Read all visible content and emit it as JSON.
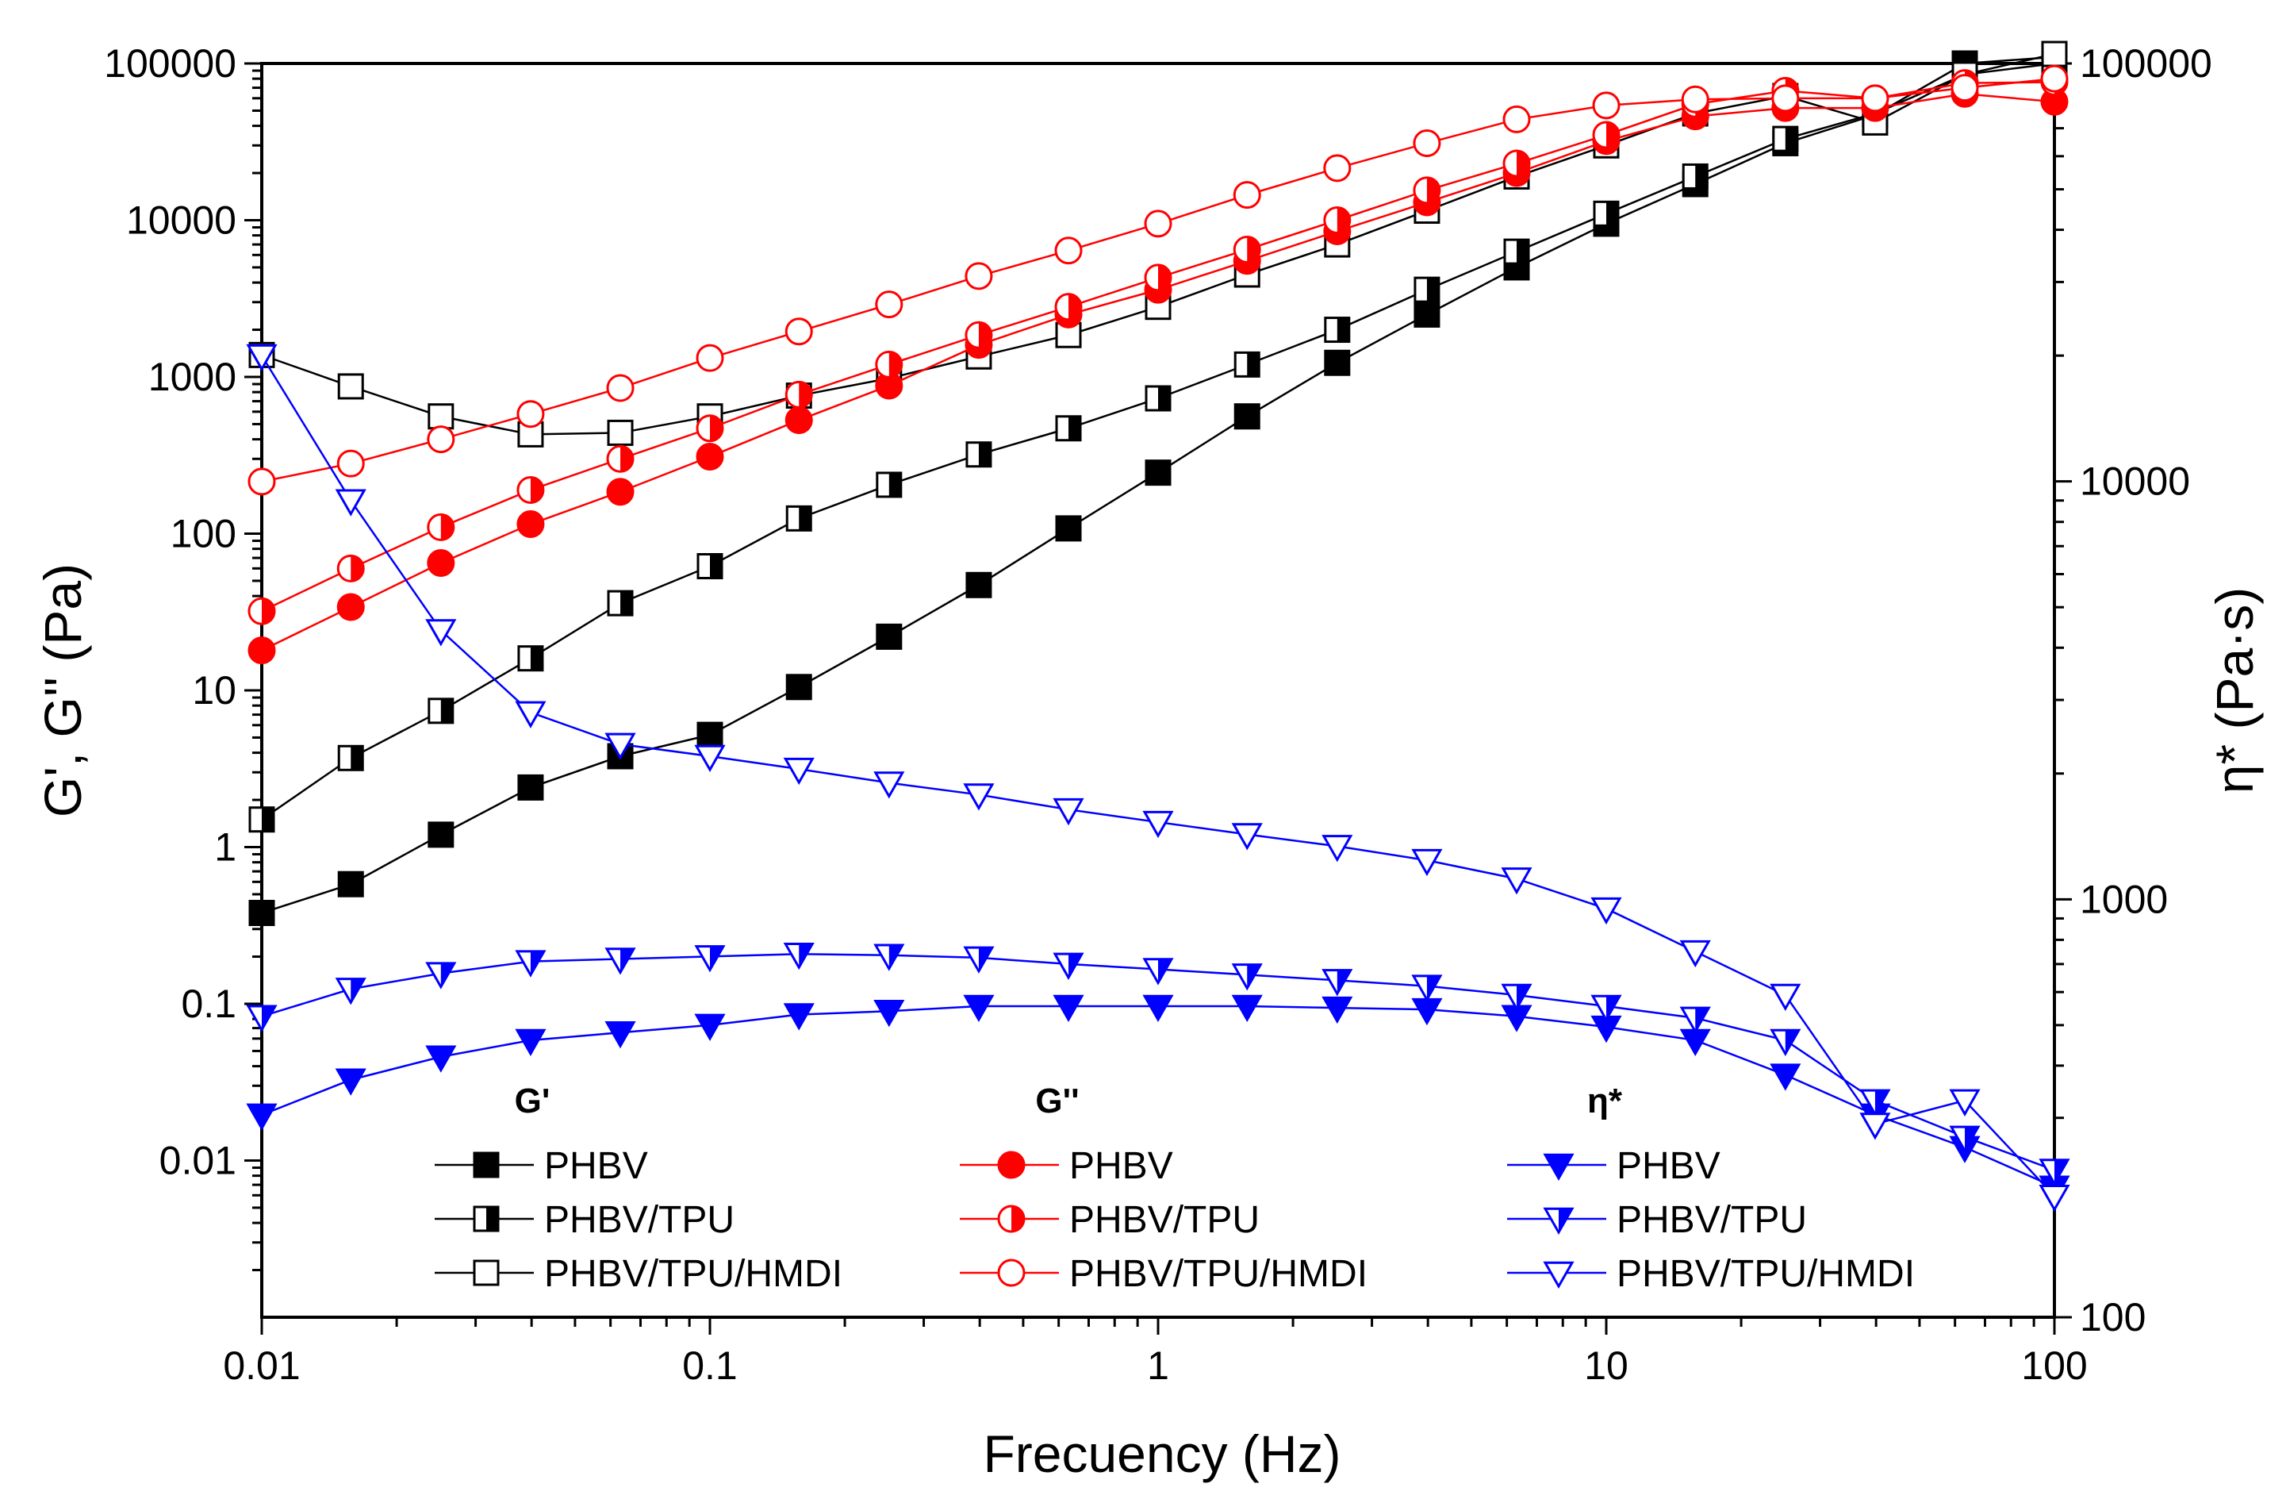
{
  "chart_data": {
    "type": "line",
    "xlabel": "Frecuency (Hz)",
    "ylabel": "G', G'' (Pa)",
    "y2label": "η* (Pa·s)",
    "x_scale": "log",
    "y_scale": "log",
    "y2_scale": "log",
    "xlim": [
      0.01,
      100
    ],
    "ylim": [
      0.001,
      100000
    ],
    "y2lim": [
      100,
      100000
    ],
    "x_ticks": [
      {
        "v": 0.01,
        "label": "0.01"
      },
      {
        "v": 0.1,
        "label": "0.1"
      },
      {
        "v": 1,
        "label": "1"
      },
      {
        "v": 10,
        "label": "10"
      },
      {
        "v": 100,
        "label": "100"
      }
    ],
    "y_ticks": [
      {
        "v": 0.01,
        "label": "0.01"
      },
      {
        "v": 0.1,
        "label": "0.1"
      },
      {
        "v": 1,
        "label": "1"
      },
      {
        "v": 10,
        "label": "10"
      },
      {
        "v": 100,
        "label": "100"
      },
      {
        "v": 1000,
        "label": "1000"
      },
      {
        "v": 10000,
        "label": "10000"
      },
      {
        "v": 100000,
        "label": "100000"
      }
    ],
    "y2_ticks": [
      {
        "v": 100,
        "label": "100"
      },
      {
        "v": 1000,
        "label": "1000"
      },
      {
        "v": 10000,
        "label": "10000"
      },
      {
        "v": 100000,
        "label": "100000"
      }
    ],
    "grid": false,
    "legend": {
      "placement": "bottom",
      "groups": [
        {
          "heading": "G'",
          "series": [
            "Gp_PHBV",
            "Gp_PHBV_TPU",
            "Gp_PHBV_TPU_HMDI"
          ]
        },
        {
          "heading": "G''",
          "series": [
            "Gpp_PHBV",
            "Gpp_PHBV_TPU",
            "Gpp_PHBV_TPU_HMDI"
          ]
        },
        {
          "heading": "η*",
          "series": [
            "eta_PHBV",
            "eta_PHBV_TPU",
            "eta_PHBV_TPU_HMDI"
          ]
        }
      ]
    },
    "x": [
      0.01,
      0.0158,
      0.0251,
      0.0398,
      0.0631,
      0.1,
      0.158,
      0.251,
      0.398,
      0.631,
      1,
      1.58,
      2.51,
      3.98,
      6.31,
      10,
      15.8,
      25.1,
      39.8,
      63.1,
      100
    ],
    "series": [
      {
        "id": "Gp_PHBV",
        "name": "PHBV",
        "axis": "left",
        "color": "#000000",
        "marker": "square",
        "fill": "full",
        "values": [
          0.38,
          0.58,
          1.2,
          2.4,
          3.8,
          5.2,
          10.5,
          22,
          47,
          108,
          245,
          560,
          1230,
          2500,
          5000,
          9500,
          17000,
          31000,
          47000,
          100000,
          110000
        ]
      },
      {
        "id": "Gp_PHBV_TPU",
        "name": "PHBV/TPU",
        "axis": "left",
        "color": "#000000",
        "marker": "square",
        "fill": "half",
        "values": [
          1.5,
          3.7,
          7.4,
          16,
          36,
          62,
          125,
          205,
          320,
          470,
          730,
          1200,
          2000,
          3600,
          6300,
          11000,
          19000,
          33000,
          48000,
          85000,
          100000
        ]
      },
      {
        "id": "Gp_PHBV_TPU_HMDI",
        "name": "PHBV/TPU/HMDI",
        "axis": "left",
        "color": "#000000",
        "marker": "square",
        "fill": "empty",
        "values": [
          1380,
          870,
          560,
          430,
          440,
          560,
          760,
          980,
          1350,
          1850,
          2800,
          4500,
          7000,
          11500,
          19000,
          30000,
          48000,
          62000,
          42000,
          85000,
          115000
        ]
      },
      {
        "id": "Gpp_PHBV",
        "name": "PHBV",
        "axis": "left",
        "color": "#ff0000",
        "marker": "circle",
        "fill": "full",
        "values": [
          18,
          34,
          65,
          115,
          185,
          310,
          530,
          880,
          1600,
          2500,
          3600,
          5500,
          8500,
          13000,
          20000,
          32000,
          46000,
          52000,
          52000,
          64000,
          57000
        ]
      },
      {
        "id": "Gpp_PHBV_TPU",
        "name": "PHBV/TPU",
        "axis": "left",
        "color": "#ff0000",
        "marker": "circle",
        "fill": "half",
        "values": [
          32,
          60,
          110,
          190,
          300,
          470,
          770,
          1200,
          1850,
          2800,
          4300,
          6500,
          10000,
          15500,
          23000,
          35000,
          55000,
          67000,
          60000,
          75000,
          76000
        ]
      },
      {
        "id": "Gpp_PHBV_TPU_HMDI",
        "name": "PHBV/TPU/HMDI",
        "axis": "left",
        "color": "#ff0000",
        "marker": "circle",
        "fill": "empty",
        "values": [
          215,
          280,
          400,
          580,
          850,
          1320,
          1950,
          2900,
          4400,
          6400,
          9500,
          14500,
          21500,
          31000,
          44000,
          54000,
          59000,
          60000,
          60000,
          70000,
          80000
        ]
      },
      {
        "id": "eta_PHBV",
        "name": "PHBV",
        "axis": "right",
        "color": "#0000ff",
        "marker": "triangle-down",
        "fill": "full",
        "values": [
          305,
          370,
          420,
          460,
          480,
          500,
          530,
          540,
          555,
          555,
          555,
          555,
          550,
          545,
          525,
          495,
          460,
          380,
          305,
          255,
          205
        ]
      },
      {
        "id": "eta_PHBV_TPU",
        "name": "PHBV/TPU",
        "axis": "right",
        "color": "#0000ff",
        "marker": "triangle-down",
        "fill": "half",
        "values": [
          525,
          610,
          665,
          710,
          720,
          730,
          740,
          735,
          725,
          700,
          680,
          660,
          640,
          620,
          590,
          555,
          520,
          460,
          330,
          270,
          225
        ]
      },
      {
        "id": "eta_PHBV_TPU_HMDI",
        "name": "PHBV/TPU/HMDI",
        "axis": "right",
        "color": "#0000ff",
        "marker": "triangle-down",
        "fill": "empty",
        "values": [
          20000,
          9000,
          4400,
          2800,
          2350,
          2200,
          2050,
          1900,
          1780,
          1640,
          1530,
          1430,
          1340,
          1240,
          1120,
          950,
          750,
          590,
          290,
          330,
          195
        ]
      }
    ]
  }
}
